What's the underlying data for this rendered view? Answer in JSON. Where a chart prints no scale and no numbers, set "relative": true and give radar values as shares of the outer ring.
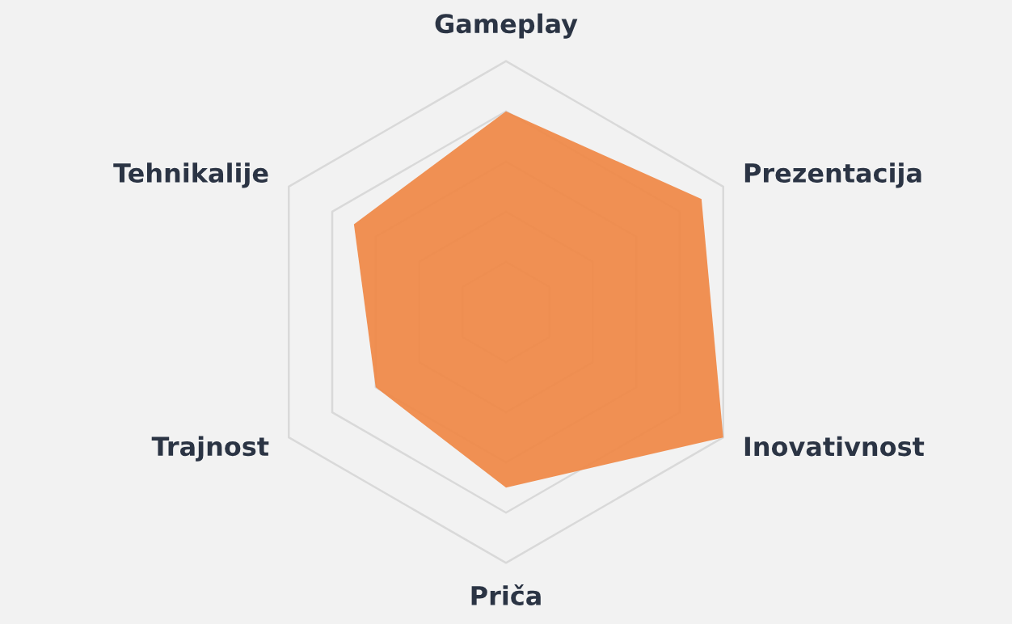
{
  "chart_data": {
    "type": "radar",
    "relative": true,
    "grid": true,
    "categories": [
      "Gameplay",
      "Prezentacija",
      "Inovativnost",
      "Priča",
      "Trajnost",
      "Tehnikalije"
    ],
    "series": [
      {
        "color": "#ef8a4a",
        "values": [
          0.8,
          0.9,
          1.0,
          0.7,
          0.6,
          0.7
        ]
      }
    ]
  }
}
